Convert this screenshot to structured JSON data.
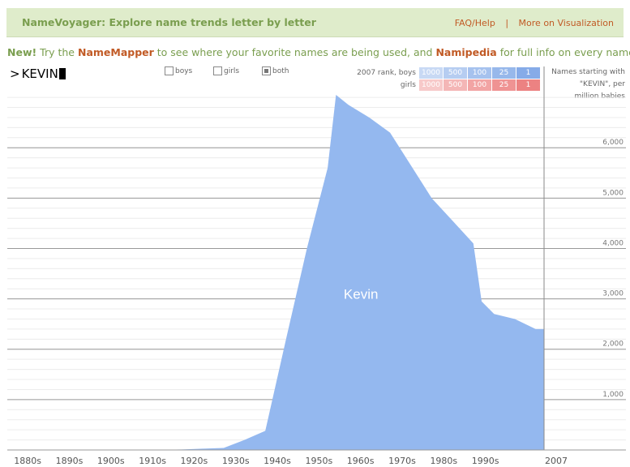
{
  "header": {
    "title": "NameVoyager: Explore name trends letter by letter",
    "nav": [
      {
        "label": "FAQ/Help"
      },
      {
        "label": "More on Visualization"
      }
    ],
    "separator": "|"
  },
  "promo": {
    "new_label": "New!",
    "text_1": " Try the ",
    "link_1": "NameMapper",
    "text_2": " to see where your favorite names are being used, and ",
    "link_2": "Namipedia",
    "text_3": " for full info on every name!"
  },
  "search": {
    "prompt": ">",
    "value": "KEVIN"
  },
  "filters": [
    {
      "label": "boys",
      "checked": false
    },
    {
      "label": "girls",
      "checked": false
    },
    {
      "label": "both",
      "checked": true
    }
  ],
  "rank_legend": {
    "boys_label": "2007 rank, boys",
    "girls_label": "girls",
    "ranks": [
      "1000",
      "500",
      "100",
      "25",
      "1"
    ],
    "boys_colors": [
      "#c8d9f4",
      "#b6cdf1",
      "#a6c2ee",
      "#97b8eb",
      "#86abe8"
    ],
    "girls_colors": [
      "#f7c9c9",
      "#f4b6b6",
      "#f2a4a4",
      "#ef9393",
      "#ec8282"
    ]
  },
  "side_label": [
    "Names starting with",
    "\"KEVIN\", per",
    "million babies"
  ],
  "colors": {
    "area": "#94b8ef",
    "accent": "#c15a25",
    "brand": "#7a9e4f"
  },
  "chart_data": {
    "type": "area",
    "series": [
      {
        "name": "Kevin",
        "x": [
          1880,
          1890,
          1900,
          1910,
          1915,
          1920,
          1925,
          1930,
          1935,
          1940,
          1945,
          1950,
          1955,
          1957,
          1960,
          1965,
          1970,
          1975,
          1980,
          1985,
          1990,
          1992,
          1995,
          2000,
          2005,
          2007
        ],
        "values": [
          0,
          0,
          0,
          0,
          3,
          10,
          25,
          40,
          200,
          380,
          2200,
          4000,
          5600,
          7050,
          6850,
          6600,
          6300,
          5650,
          5000,
          4550,
          4100,
          2950,
          2700,
          2600,
          2400,
          2400
        ]
      }
    ],
    "x_tick_labels": [
      "1880s",
      "1890s",
      "1900s",
      "1910s",
      "1920s",
      "1930s",
      "1940s",
      "1950s",
      "1960s",
      "1970s",
      "1980s",
      "1990s",
      "2007"
    ],
    "x_ticks": [
      1880,
      1890,
      1900,
      1910,
      1920,
      1930,
      1940,
      1950,
      1960,
      1970,
      1980,
      1990,
      2007
    ],
    "y_ticks": [
      1000,
      2000,
      3000,
      4000,
      5000,
      6000
    ],
    "y_tick_labels": [
      "1,000",
      "2,000",
      "3,000",
      "4,000",
      "5,000",
      "6,000"
    ],
    "ylim": [
      0,
      7050
    ],
    "xlim": [
      1878,
      2007
    ],
    "grid": true
  }
}
